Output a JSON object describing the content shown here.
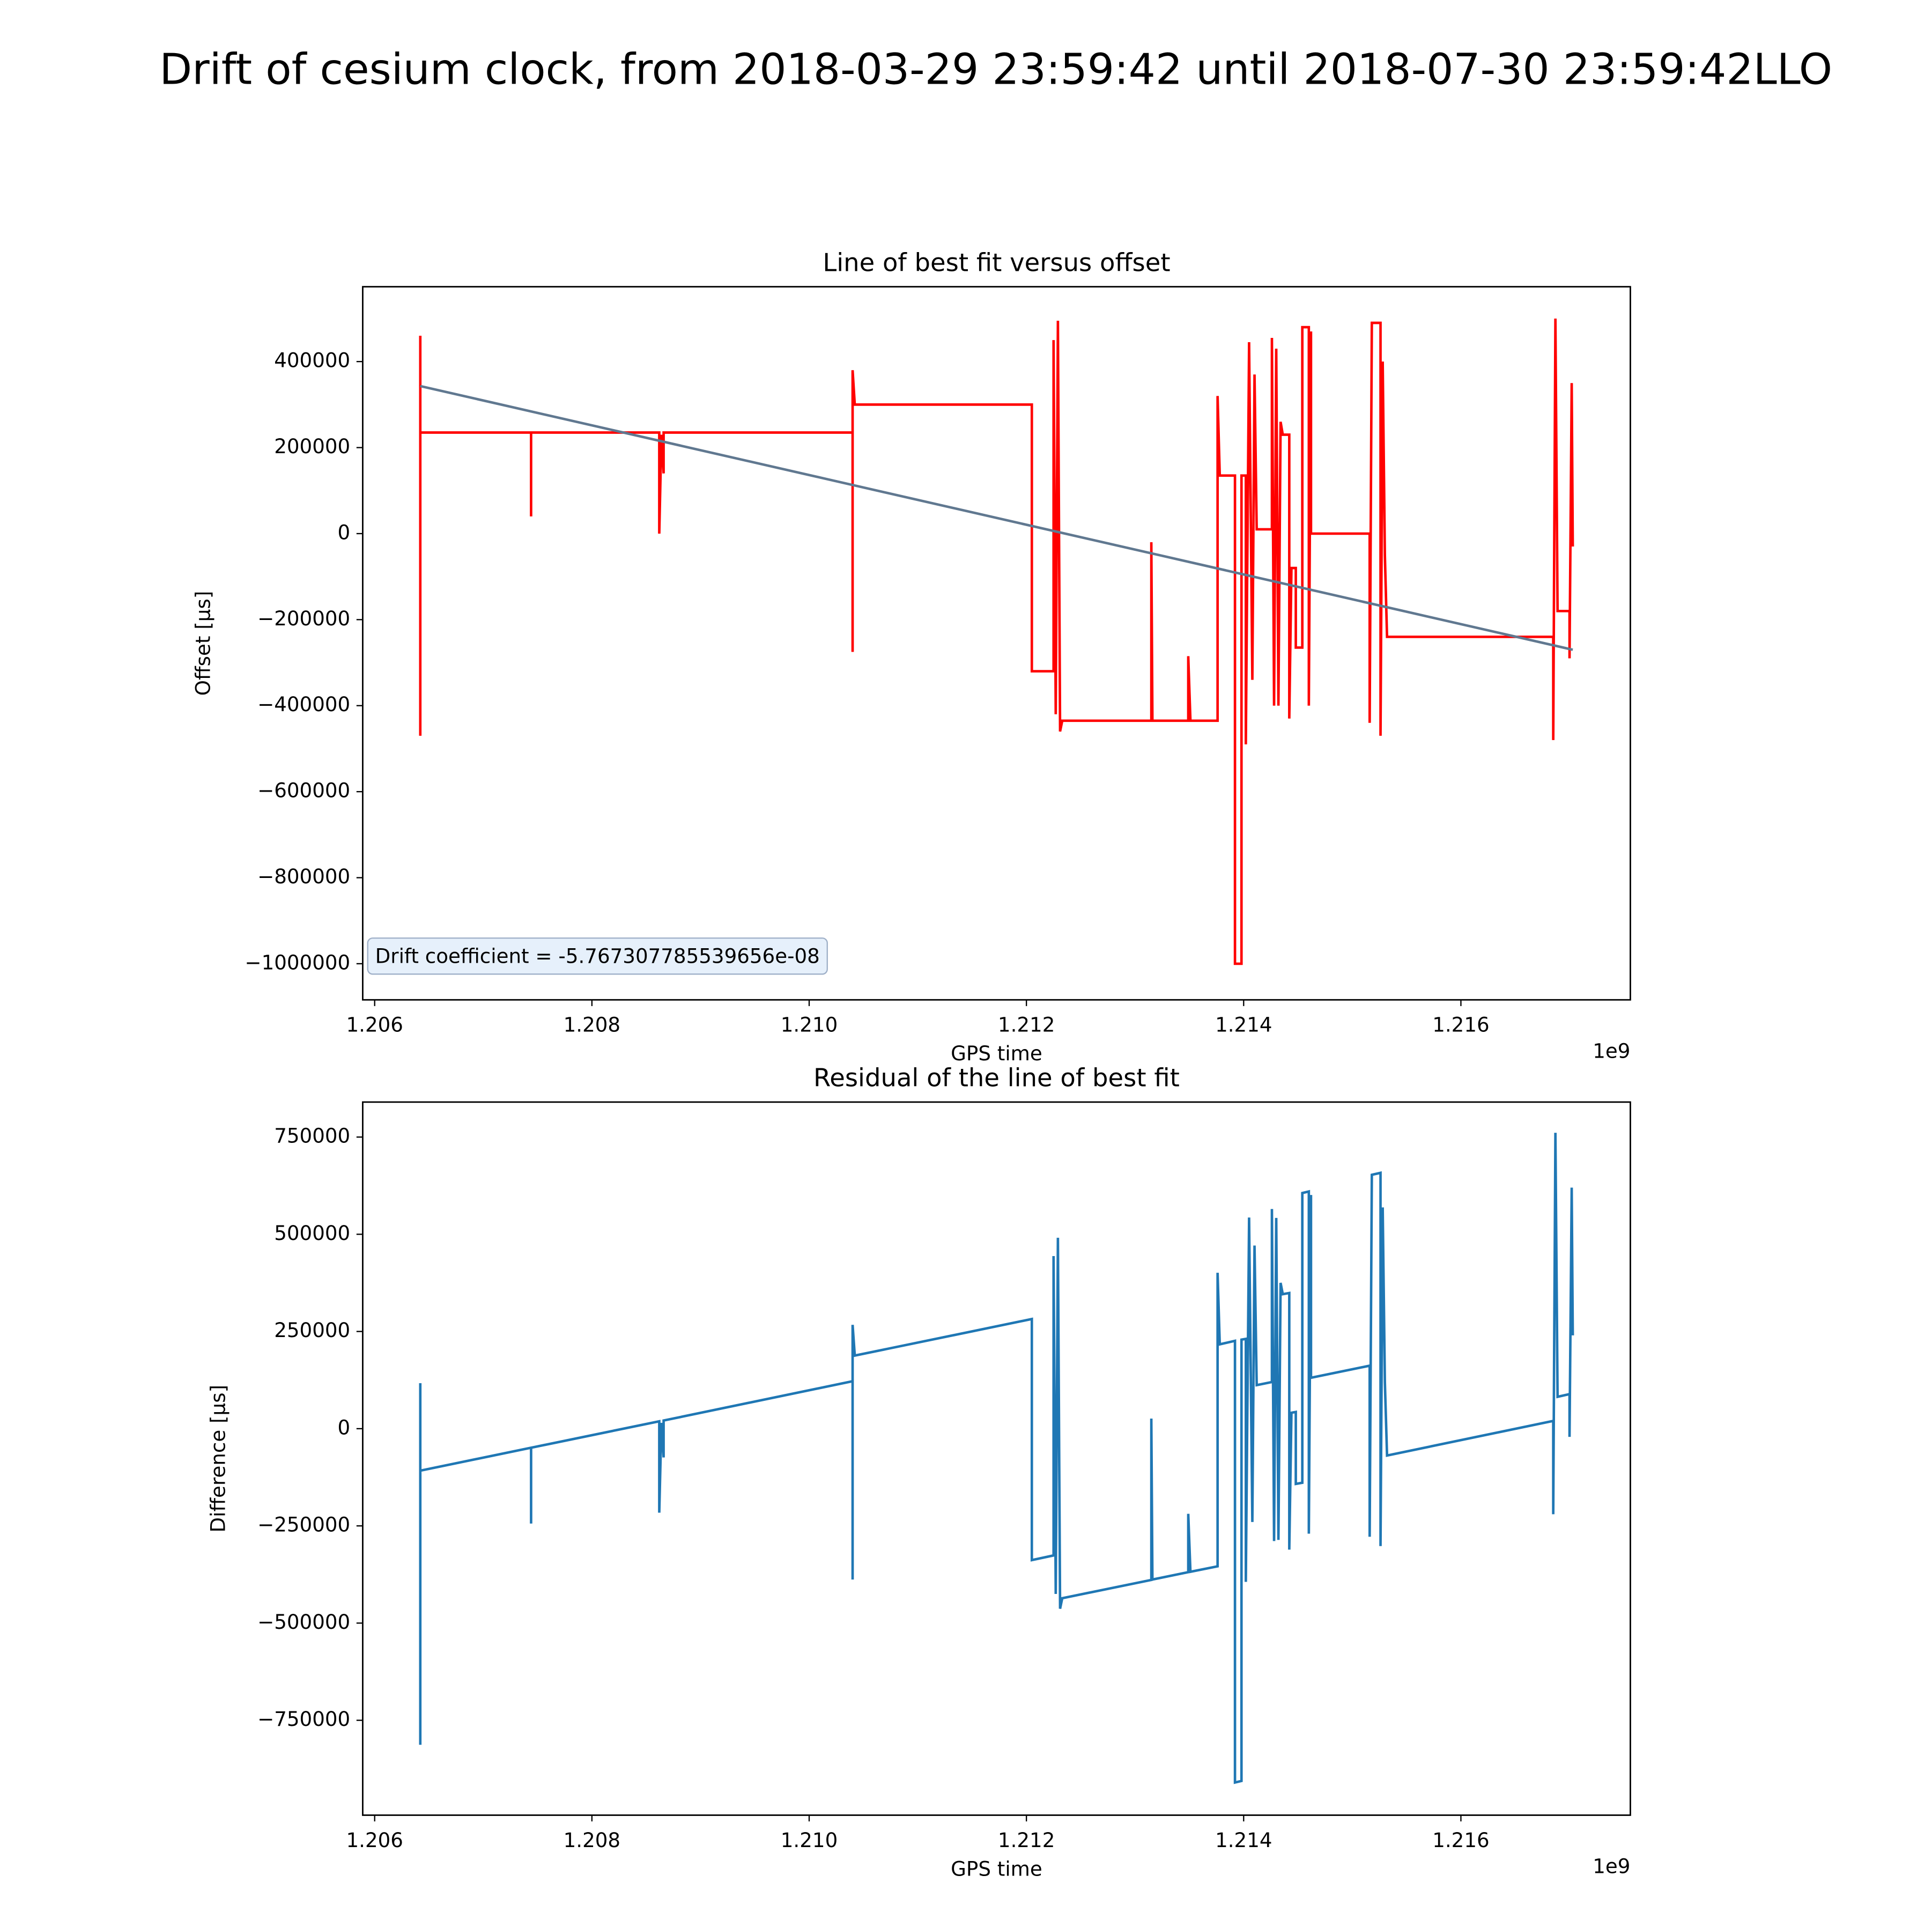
{
  "title": "Drift of cesium clock, from 2018-03-29 23:59:42 until 2018-07-30 23:59:42LLO",
  "chart_data": [
    {
      "type": "line",
      "title": "Line of best fit versus offset",
      "xlabel": "GPS time",
      "ylabel": "Offset [μs]",
      "x_offset_label": "1e9",
      "annotation": "Drift coefficient = -5.767307785539656e-08",
      "xlim": [
        1.20589,
        1.21756
      ],
      "xticks": [
        1.206,
        1.208,
        {
          "value": 1.21,
          "label": "1.210"
        },
        1.212,
        1.214,
        1.216
      ],
      "ylim": [
        -1084000,
        574000
      ],
      "yticks": [
        {
          "value": -1000000,
          "label": "−1000000"
        },
        {
          "value": -800000,
          "label": "−800000"
        },
        {
          "value": -600000,
          "label": "−600000"
        },
        {
          "value": -400000,
          "label": "−400000"
        },
        {
          "value": -200000,
          "label": "−200000"
        },
        0,
        200000,
        400000
      ],
      "x": [
        1.20642,
        1.20642,
        1.20642,
        1.20744,
        1.20744,
        1.20744,
        1.20862,
        1.20862,
        1.20864,
        1.20866,
        1.20866,
        1.2104,
        1.2104,
        1.2104,
        1.21042,
        1.21205,
        1.21205,
        1.21225,
        1.21225,
        1.21227,
        1.21229,
        1.21231,
        1.21233,
        1.21315,
        1.21315,
        1.21316,
        1.21349,
        1.21349,
        1.21351,
        1.21376,
        1.21376,
        1.21378,
        1.21392,
        1.21392,
        1.21398,
        1.21398,
        1.21402,
        1.21402,
        1.21405,
        1.21408,
        1.2141,
        1.21412,
        1.21426,
        1.21426,
        1.21428,
        1.2143,
        1.21432,
        1.21434,
        1.21436,
        1.21442,
        1.21442,
        1.21444,
        1.21448,
        1.21448,
        1.21454,
        1.21454,
        1.2146,
        1.2146,
        1.21462,
        1.21462,
        1.21516,
        1.21516,
        1.21518,
        1.21526,
        1.21526,
        1.21528,
        1.2153,
        1.21532,
        1.21685,
        1.21685,
        1.21687,
        1.21689,
        1.217,
        1.217,
        1.21702,
        1.21703
      ],
      "series": [
        {
          "color": "#ff0000",
          "values": [
            460000,
            -470000,
            235000,
            235000,
            40000,
            235000,
            235000,
            0,
            230000,
            140000,
            235000,
            235000,
            -275000,
            380000,
            300000,
            300000,
            -320000,
            -320000,
            450000,
            -420000,
            495000,
            -460000,
            -435000,
            -435000,
            -20000,
            -435000,
            -435000,
            -285000,
            -435000,
            -435000,
            320000,
            135000,
            135000,
            -1000000,
            -1000000,
            135000,
            135000,
            -490000,
            445000,
            -340000,
            370000,
            10000,
            10000,
            455000,
            -400000,
            430000,
            -400000,
            260000,
            230000,
            230000,
            -430000,
            -80000,
            -80000,
            -265000,
            -265000,
            480000,
            480000,
            -400000,
            470000,
            0,
            0,
            -440000,
            490000,
            490000,
            -470000,
            400000,
            -50000,
            -240000,
            -240000,
            -480000,
            500000,
            -180000,
            -180000,
            -290000,
            350000,
            -30000
          ]
        },
        {
          "color": "#607890",
          "x": [
            1.20642,
            1.21703
          ],
          "values": [
            343000,
            -270000
          ]
        }
      ]
    },
    {
      "type": "line",
      "title": "Residual of the line of best fit",
      "xlabel": "GPS time",
      "ylabel": "Difference [μs]",
      "x_offset_label": "1e9",
      "xlim": [
        1.20589,
        1.21756
      ],
      "xticks": [
        1.206,
        1.208,
        {
          "value": 1.21,
          "label": "1.210"
        },
        1.212,
        1.214,
        1.216
      ],
      "ylim": [
        -994000,
        840000
      ],
      "yticks": [
        {
          "value": -750000,
          "label": "−750000"
        },
        {
          "value": -500000,
          "label": "−500000"
        },
        {
          "value": -250000,
          "label": "−250000"
        },
        0,
        250000,
        500000,
        750000
      ],
      "x": [
        1.20642,
        1.20642,
        1.20642,
        1.20744,
        1.20744,
        1.20744,
        1.20862,
        1.20862,
        1.20864,
        1.20866,
        1.20866,
        1.2104,
        1.2104,
        1.2104,
        1.21042,
        1.21205,
        1.21205,
        1.21225,
        1.21225,
        1.21227,
        1.21229,
        1.21231,
        1.21233,
        1.21315,
        1.21315,
        1.21316,
        1.21349,
        1.21349,
        1.21351,
        1.21376,
        1.21376,
        1.21378,
        1.21392,
        1.21392,
        1.21398,
        1.21398,
        1.21402,
        1.21402,
        1.21405,
        1.21408,
        1.2141,
        1.21412,
        1.21426,
        1.21426,
        1.21428,
        1.2143,
        1.21432,
        1.21434,
        1.21436,
        1.21442,
        1.21442,
        1.21444,
        1.21448,
        1.21448,
        1.21454,
        1.21454,
        1.2146,
        1.2146,
        1.21462,
        1.21462,
        1.21516,
        1.21516,
        1.21518,
        1.21526,
        1.21526,
        1.21528,
        1.2153,
        1.21532,
        1.21685,
        1.21685,
        1.21687,
        1.21689,
        1.217,
        1.217,
        1.21702,
        1.21703
      ],
      "series": [
        {
          "color": "#1f77b4",
          "values": [
            117000,
            -813000,
            -108000,
            -49000,
            -244000,
            -49000,
            19000,
            -216000,
            15000,
            -74000,
            21000,
            122000,
            -388000,
            267000,
            188000,
            282000,
            -338000,
            -326000,
            444000,
            -425000,
            491000,
            -463000,
            -436000,
            -389000,
            26000,
            -388000,
            -369000,
            -219000,
            -368000,
            -354000,
            401000,
            217000,
            226000,
            -910000,
            -906000,
            229000,
            231000,
            -394000,
            543000,
            -240000,
            471000,
            112000,
            120000,
            565000,
            -289000,
            542000,
            -286000,
            375000,
            346000,
            349000,
            -311000,
            41000,
            43000,
            -142000,
            -139000,
            606000,
            610000,
            -270000,
            601000,
            131000,
            162000,
            -278000,
            653000,
            658000,
            -302000,
            569000,
            120000,
            -69000,
            20000,
            -220000,
            761000,
            82000,
            89000,
            -21000,
            620000,
            240000
          ]
        }
      ]
    }
  ]
}
